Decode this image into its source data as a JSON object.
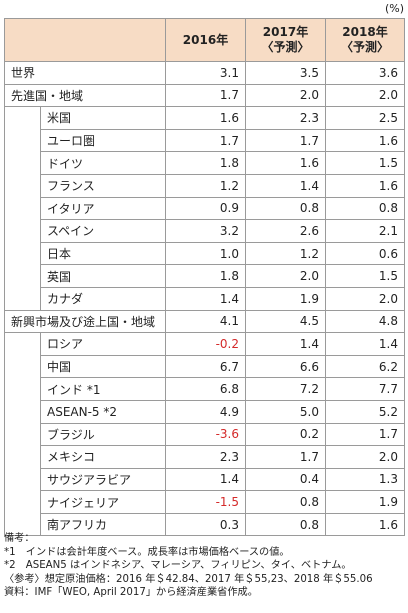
{
  "unit": "(%)",
  "header": {
    "col2016": "2016年",
    "col2017_line1": "2017年",
    "col2017_line2": "〈予測〉",
    "col2018_line1": "2018年",
    "col2018_line2": "〈予測〉"
  },
  "rows": [
    {
      "name": "世界",
      "level": 0,
      "v2016": "3.1",
      "v2017": "3.5",
      "v2018": "3.6",
      "neg": false
    },
    {
      "name": "先進国・地域",
      "level": 0,
      "v2016": "1.7",
      "v2017": "2.0",
      "v2018": "2.0",
      "neg": false
    },
    {
      "name": "米国",
      "level": 1,
      "v2016": "1.6",
      "v2017": "2.3",
      "v2018": "2.5",
      "neg": false
    },
    {
      "name": "ユーロ圏",
      "level": 1,
      "v2016": "1.7",
      "v2017": "1.7",
      "v2018": "1.6",
      "neg": false
    },
    {
      "name": "ドイツ",
      "level": 1,
      "v2016": "1.8",
      "v2017": "1.6",
      "v2018": "1.5",
      "neg": false
    },
    {
      "name": "フランス",
      "level": 1,
      "v2016": "1.2",
      "v2017": "1.4",
      "v2018": "1.6",
      "neg": false
    },
    {
      "name": "イタリア",
      "level": 1,
      "v2016": "0.9",
      "v2017": "0.8",
      "v2018": "0.8",
      "neg": false
    },
    {
      "name": "スペイン",
      "level": 1,
      "v2016": "3.2",
      "v2017": "2.6",
      "v2018": "2.1",
      "neg": false
    },
    {
      "name": "日本",
      "level": 1,
      "v2016": "1.0",
      "v2017": "1.2",
      "v2018": "0.6",
      "neg": false
    },
    {
      "name": "英国",
      "level": 1,
      "v2016": "1.8",
      "v2017": "2.0",
      "v2018": "1.5",
      "neg": false
    },
    {
      "name": "カナダ",
      "level": 1,
      "v2016": "1.4",
      "v2017": "1.9",
      "v2018": "2.0",
      "neg": false
    },
    {
      "name": "新興市場及び途上国・地域",
      "level": 0,
      "v2016": "4.1",
      "v2017": "4.5",
      "v2018": "4.8",
      "neg": false
    },
    {
      "name": "ロシア",
      "level": 1,
      "v2016": "-0.2",
      "v2017": "1.4",
      "v2018": "1.4",
      "neg": true
    },
    {
      "name": "中国",
      "level": 1,
      "v2016": "6.7",
      "v2017": "6.6",
      "v2018": "6.2",
      "neg": false
    },
    {
      "name": "インド *1",
      "level": 1,
      "v2016": "6.8",
      "v2017": "7.2",
      "v2018": "7.7",
      "neg": false
    },
    {
      "name": "ASEAN-5 *2",
      "level": 1,
      "v2016": "4.9",
      "v2017": "5.0",
      "v2018": "5.2",
      "neg": false
    },
    {
      "name": "ブラジル",
      "level": 1,
      "v2016": "-3.6",
      "v2017": "0.2",
      "v2018": "1.7",
      "neg": true
    },
    {
      "name": "メキシコ",
      "level": 1,
      "v2016": "2.3",
      "v2017": "1.7",
      "v2018": "2.0",
      "neg": false
    },
    {
      "name": "サウジアラビア",
      "level": 1,
      "v2016": "1.4",
      "v2017": "0.4",
      "v2018": "1.3",
      "neg": false
    },
    {
      "name": "ナイジェリア",
      "level": 1,
      "v2016": "-1.5",
      "v2017": "0.8",
      "v2018": "1.9",
      "neg": true
    },
    {
      "name": "南アフリカ",
      "level": 1,
      "v2016": "0.3",
      "v2017": "0.8",
      "v2018": "1.6",
      "neg": false
    }
  ],
  "notes": [
    "備考：",
    "*1　インドは会計年度ベース。成長率は市場価格ベースの値。",
    "*2　ASEAN5 はインドネシア、マレーシア、フィリピン、タイ、ベトナム。",
    "〈参考〉想定原油価格：2016 年＄42.84、2017 年＄55,23、2018 年＄55.06",
    "資料：IMF「WEO, April 2017」から経済産業省作成。"
  ],
  "colors": {
    "header_bg": "#f7dcc5",
    "negative": "#d42a2a",
    "border": "#9a9a9a"
  }
}
